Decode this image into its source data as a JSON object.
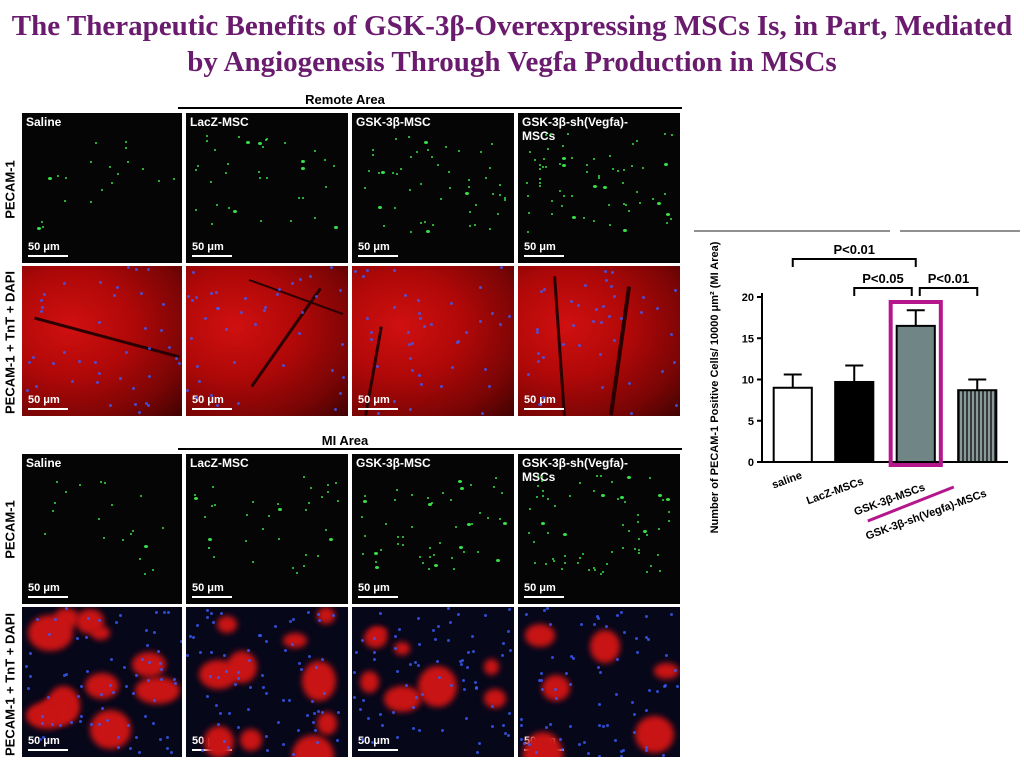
{
  "title": "The Therapeutic Benefits of GSK-3β-Overexpressing MSCs Is, in Part, Mediated by Angiogenesis Through Vegfa Production in MSCs",
  "sections": [
    {
      "label": "Remote Area"
    },
    {
      "label": "MI Area"
    }
  ],
  "row_labels": {
    "pecam": "PECAM-1",
    "merge": "PECAM-1 + TnT + DAPI"
  },
  "panel_labels": [
    "Saline",
    "LacZ-MSC",
    "GSK-3β-MSC",
    "GSK-3β-sh(Vegfa)-MSCs"
  ],
  "scale_bar": "50 μm",
  "colors": {
    "title": "#6a1b6e",
    "highlight": "#b5168c",
    "pecam": "#36e24a",
    "tnt": "#c81414",
    "dapi": "#3a5cff"
  },
  "chart_data": {
    "type": "bar",
    "categories": [
      "saline",
      "LacZ-MSCs",
      "GSK-3β-MSCs",
      "GSK-3β-sh(Vegfa)-MSCs"
    ],
    "values": [
      9.0,
      9.7,
      16.5,
      8.7
    ],
    "errors": [
      1.6,
      2.0,
      1.9,
      1.3
    ],
    "bar_styles": [
      "white",
      "black",
      "gray",
      "striped"
    ],
    "ylabel": "Number of PECAM-1 Positive Cells/ 10000 μm² (MI Area)",
    "ylim": [
      0,
      20
    ],
    "yticks": [
      0,
      5,
      10,
      15,
      20
    ],
    "highlight_index": 2,
    "significance": [
      {
        "from": 0,
        "to": 2,
        "label": "P<0.01"
      },
      {
        "from": 1,
        "to": 2,
        "label": "P<0.05"
      },
      {
        "from": 2,
        "to": 3,
        "label": "P<0.01"
      }
    ]
  }
}
